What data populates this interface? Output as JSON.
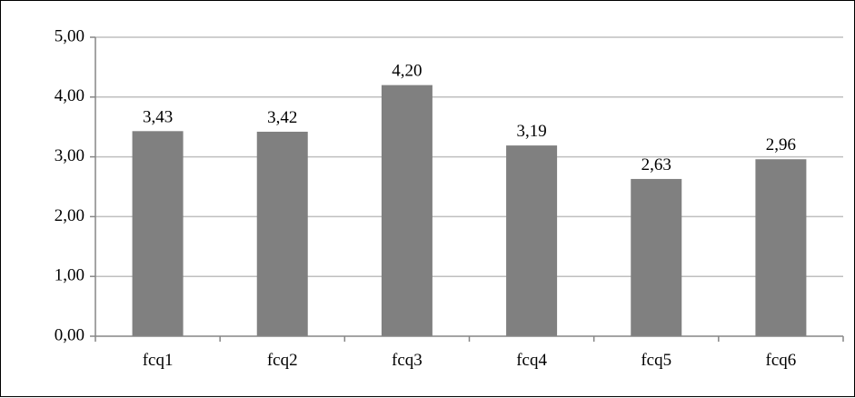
{
  "chart_data": {
    "type": "bar",
    "categories": [
      "fcq1",
      "fcq2",
      "fcq3",
      "fcq4",
      "fcq5",
      "fcq6"
    ],
    "values": [
      3.43,
      3.42,
      4.2,
      3.19,
      2.63,
      2.96
    ],
    "data_labels": [
      "3,43",
      "3,42",
      "4,20",
      "3,19",
      "2,63",
      "2,96"
    ],
    "y_ticks": [
      0,
      1,
      2,
      3,
      4,
      5
    ],
    "y_tick_labels": [
      "0,00",
      "1,00",
      "2,00",
      "3,00",
      "4,00",
      "5,00"
    ],
    "ylim": [
      0,
      5
    ],
    "grid": true,
    "legend": "none",
    "bar_color": "#808080",
    "grid_color": "#bfbfbf",
    "axis_color": "#868686"
  }
}
